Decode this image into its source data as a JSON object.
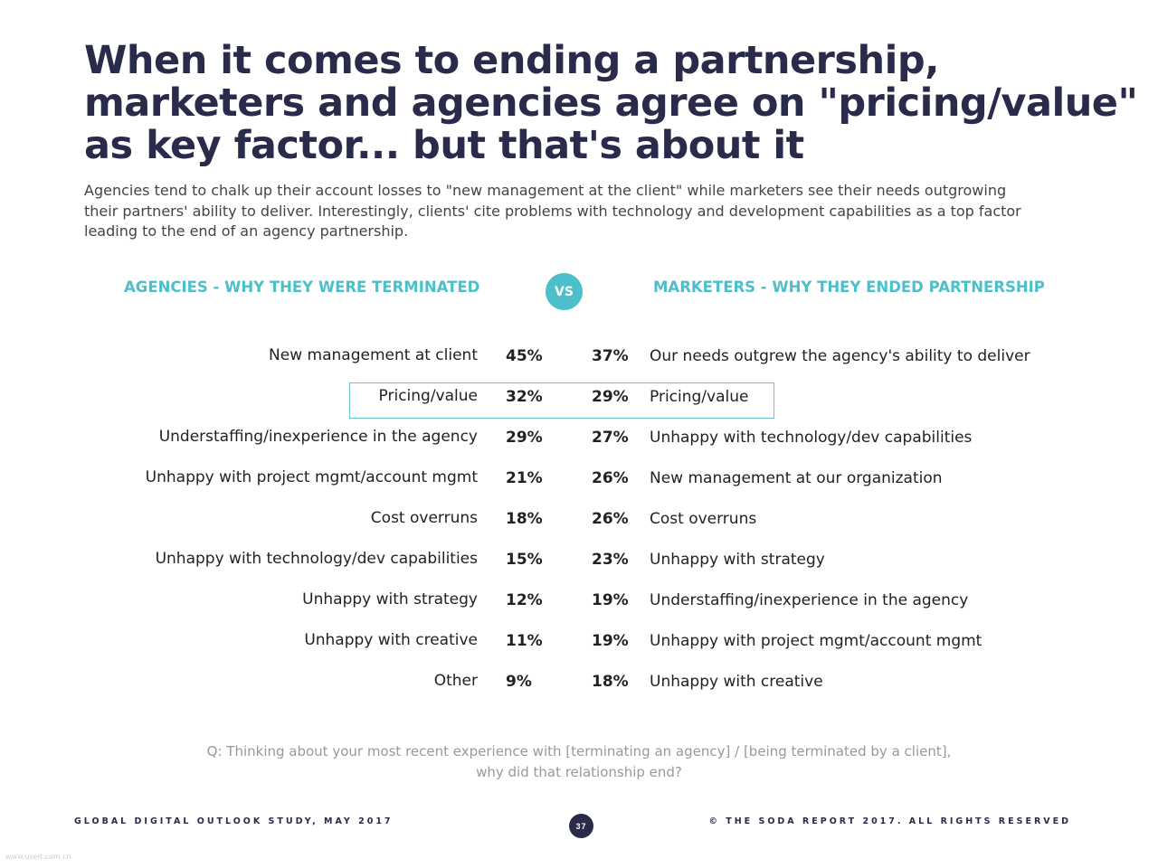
{
  "title_lines": [
    "When it comes to ending a partnership,",
    "marketers and agencies agree on \"pricing/value\"",
    "as key factor... but that's about it"
  ],
  "subtitle_lines": [
    "Agencies tend to chalk up their account losses to \"new management at the client\" while marketers see their needs outgrowing",
    "their partners' ability to deliver. Interestingly, clients' cite problems with technology and development capabilities as a top factor",
    "leading to the end of an agency partnership."
  ],
  "agencies_heading": "AGENCIES - WHY THEY WERE TERMINATED",
  "vs_label": "VS",
  "marketers_heading": "MARKETERS - WHY THEY ENDED PARTNERSHIP",
  "rows": [
    {
      "agency_reason": "New management at client",
      "agency_pct": "45%",
      "marketer_pct": "37%",
      "marketer_reason": "Our needs outgrew the agency's ability to deliver"
    },
    {
      "agency_reason": "Pricing/value",
      "agency_pct": "32%",
      "marketer_pct": "29%",
      "marketer_reason": "Pricing/value"
    },
    {
      "agency_reason": "Understaffing/inexperience in the agency",
      "agency_pct": "29%",
      "marketer_pct": "27%",
      "marketer_reason": "Unhappy with technology/dev capabilities"
    },
    {
      "agency_reason": "Unhappy with project mgmt/account mgmt",
      "agency_pct": "21%",
      "marketer_pct": "26%",
      "marketer_reason": "New management at our organization"
    },
    {
      "agency_reason": "Cost overruns",
      "agency_pct": "18%",
      "marketer_pct": "26%",
      "marketer_reason": "Cost overruns"
    },
    {
      "agency_reason": "Unhappy with technology/dev capabilities",
      "agency_pct": "15%",
      "marketer_pct": "23%",
      "marketer_reason": "Unhappy with strategy"
    },
    {
      "agency_reason": "Unhappy with strategy",
      "agency_pct": "12%",
      "marketer_pct": "19%",
      "marketer_reason": "Understaffing/inexperience in the agency"
    },
    {
      "agency_reason": "Unhappy with creative",
      "agency_pct": "11%",
      "marketer_pct": "19%",
      "marketer_reason": "Unhappy with project mgmt/account mgmt"
    },
    {
      "agency_reason": "Other",
      "agency_pct": "9%",
      "marketer_pct": "18%",
      "marketer_reason": "Unhappy with creative"
    }
  ],
  "question_lines": [
    "Q: Thinking about your most recent experience with [terminating an agency] / [being terminated by a client],",
    "why did that relationship end?"
  ],
  "footer_left": "GLOBAL DIGITAL OUTLOOK STUDY, MAY 2017",
  "page_number": "37",
  "footer_right": "© THE SODA REPORT 2017. ALL RIGHTS RESERVED",
  "watermark": "www.useit.com.cn",
  "colors": {
    "accent": "#4dbfca",
    "title": "#2a2a4a",
    "highlight_border": "#6ac6cf"
  }
}
